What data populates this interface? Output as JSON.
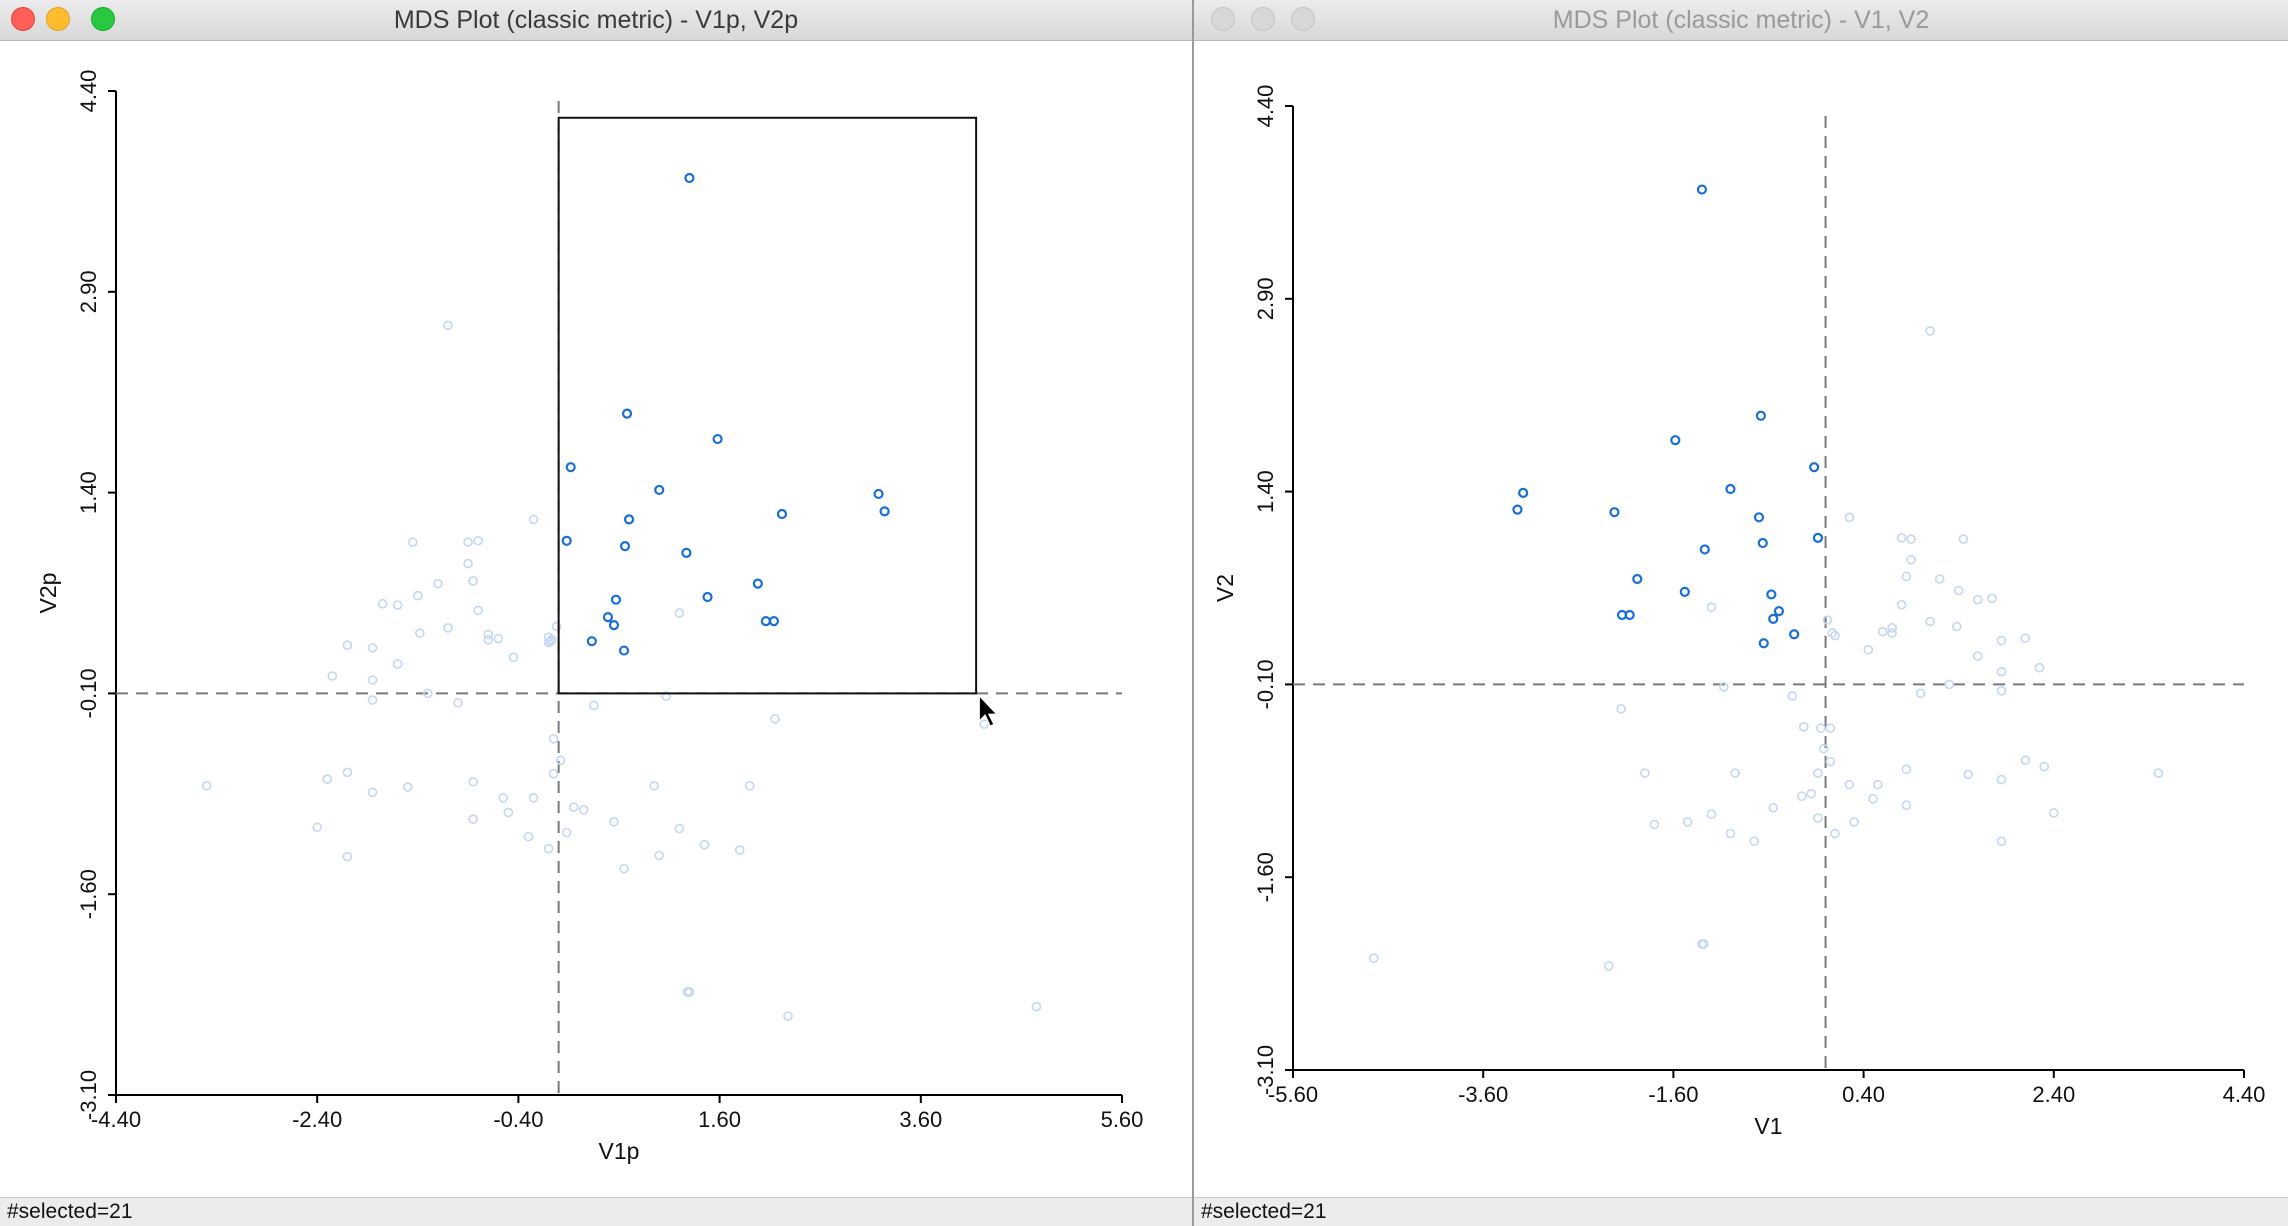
{
  "colors": {
    "selected": "#1a6fd6",
    "unselected": "#c3d6f2",
    "axis": "#000000",
    "dash": "#7a7a7a"
  },
  "left_window": {
    "title": "MDS Plot (classic metric) - V1p, V2p",
    "status": "#selected=21",
    "controls": [
      "close-icon",
      "minimize-icon",
      "zoom-icon"
    ]
  },
  "right_window": {
    "title": "MDS Plot (classic metric) - V1, V2",
    "status": "#selected=21",
    "controls": [
      "close-icon",
      "minimize-icon",
      "zoom-icon"
    ]
  },
  "chart_data": [
    {
      "type": "scatter",
      "xlabel": "V1p",
      "ylabel": "V2p",
      "xlim": [
        -4.4,
        5.6
      ],
      "ylim": [
        -3.1,
        4.4
      ],
      "xticks": [
        "-4.40",
        "-2.40",
        "-0.40",
        "1.60",
        "3.60",
        "5.60"
      ],
      "yticks": [
        "-3.10",
        "-1.60",
        "-0.10",
        "1.40",
        "2.90",
        "4.40"
      ],
      "reference_lines": {
        "x": -0.0,
        "y": -0.1
      },
      "selection_box": {
        "x1": -0.0,
        "x2": 4.15,
        "y1": -0.1,
        "y2": 4.2
      },
      "selected_points": [
        [
          1.3,
          3.75
        ],
        [
          0.68,
          1.99
        ],
        [
          1.58,
          1.8
        ],
        [
          0.12,
          1.59
        ],
        [
          1.0,
          1.42
        ],
        [
          3.18,
          1.39
        ],
        [
          3.24,
          1.26
        ],
        [
          2.22,
          1.24
        ],
        [
          0.7,
          1.2
        ],
        [
          0.08,
          1.04
        ],
        [
          0.66,
          1.0
        ],
        [
          1.27,
          0.95
        ],
        [
          1.98,
          0.72
        ],
        [
          1.48,
          0.62
        ],
        [
          0.57,
          0.6
        ],
        [
          0.49,
          0.47
        ],
        [
          0.55,
          0.41
        ],
        [
          2.06,
          0.44
        ],
        [
          2.14,
          0.44
        ],
        [
          0.33,
          0.29
        ],
        [
          0.65,
          0.22
        ]
      ],
      "unselected_points": [
        [
          -1.1,
          2.65
        ],
        [
          -3.5,
          -0.79
        ],
        [
          -2.1,
          0.26
        ],
        [
          -2.25,
          0.03
        ],
        [
          -1.85,
          0.24
        ],
        [
          -1.6,
          0.12
        ],
        [
          -1.38,
          0.35
        ],
        [
          -1.1,
          0.39
        ],
        [
          -1.4,
          0.63
        ],
        [
          -1.75,
          0.57
        ],
        [
          -1.6,
          0.56
        ],
        [
          -1.2,
          0.72
        ],
        [
          -0.85,
          0.74
        ],
        [
          -0.9,
          0.87
        ],
        [
          -0.8,
          1.04
        ],
        [
          -1.45,
          1.03
        ],
        [
          -0.9,
          1.03
        ],
        [
          -0.25,
          1.2
        ],
        [
          -0.6,
          0.31
        ],
        [
          -0.7,
          0.3
        ],
        [
          -0.8,
          0.52
        ],
        [
          -1.0,
          -0.17
        ],
        [
          -1.3,
          -0.1
        ],
        [
          -1.85,
          -0.15
        ],
        [
          -1.85,
          0.0
        ],
        [
          -2.1,
          -0.69
        ],
        [
          -2.3,
          -0.74
        ],
        [
          -1.85,
          -0.84
        ],
        [
          -2.4,
          -1.1
        ],
        [
          -2.1,
          -1.32
        ],
        [
          -1.5,
          -0.8
        ],
        [
          -0.85,
          -0.76
        ],
        [
          -0.55,
          -0.88
        ],
        [
          -0.5,
          -0.99
        ],
        [
          -0.25,
          -0.88
        ],
        [
          -0.85,
          -1.04
        ],
        [
          -0.3,
          -1.17
        ],
        [
          -0.1,
          -1.26
        ],
        [
          0.08,
          -1.14
        ],
        [
          0.25,
          -0.97
        ],
        [
          -0.05,
          -0.44
        ],
        [
          0.35,
          -0.19
        ],
        [
          0.55,
          -1.06
        ],
        [
          0.65,
          -1.41
        ],
        [
          1.0,
          -1.31
        ],
        [
          1.2,
          -1.11
        ],
        [
          1.45,
          -1.23
        ],
        [
          1.8,
          -1.27
        ],
        [
          1.9,
          -0.79
        ],
        [
          0.95,
          -0.79
        ],
        [
          1.07,
          -0.12
        ],
        [
          2.15,
          -0.29
        ],
        [
          -0.1,
          0.32
        ],
        [
          -0.08,
          0.29
        ],
        [
          1.28,
          -2.33
        ],
        [
          1.3,
          -2.33
        ],
        [
          2.28,
          -2.51
        ],
        [
          4.75,
          -2.44
        ],
        [
          4.23,
          -0.33
        ],
        [
          -0.45,
          0.17
        ],
        [
          -0.07,
          0.3
        ],
        [
          -0.02,
          0.4
        ],
        [
          1.2,
          0.5
        ],
        [
          -0.7,
          0.34
        ],
        [
          -0.1,
          0.28
        ],
        [
          0.02,
          -0.6
        ],
        [
          0.15,
          -0.95
        ],
        [
          -0.05,
          -0.7
        ]
      ]
    },
    {
      "type": "scatter",
      "xlabel": "V1",
      "ylabel": "V2",
      "xlim": [
        -5.6,
        4.4
      ],
      "ylim": [
        -3.1,
        4.4
      ],
      "xticks": [
        "-5.60",
        "-3.60",
        "-1.60",
        "0.40",
        "2.40",
        "4.40"
      ],
      "yticks": [
        "-3.10",
        "-1.60",
        "-0.10",
        "1.40",
        "2.90",
        "4.40"
      ],
      "reference_lines": {
        "x": 0.0,
        "y": -0.1
      },
      "selected_points": [
        [
          -1.3,
          3.75
        ],
        [
          -0.68,
          1.99
        ],
        [
          -1.58,
          1.8
        ],
        [
          -0.12,
          1.59
        ],
        [
          -1.0,
          1.42
        ],
        [
          -3.18,
          1.39
        ],
        [
          -3.24,
          1.26
        ],
        [
          -2.22,
          1.24
        ],
        [
          -0.7,
          1.2
        ],
        [
          -0.08,
          1.04
        ],
        [
          -0.66,
          1.0
        ],
        [
          -1.27,
          0.95
        ],
        [
          -1.98,
          0.72
        ],
        [
          -1.48,
          0.62
        ],
        [
          -0.57,
          0.6
        ],
        [
          -0.49,
          0.47
        ],
        [
          -0.55,
          0.41
        ],
        [
          -2.06,
          0.44
        ],
        [
          -2.14,
          0.44
        ],
        [
          -0.33,
          0.29
        ],
        [
          -0.65,
          0.22
        ]
      ],
      "unselected_points": [
        [
          1.1,
          2.65
        ],
        [
          3.5,
          -0.79
        ],
        [
          2.1,
          0.26
        ],
        [
          2.25,
          0.03
        ],
        [
          1.85,
          0.24
        ],
        [
          1.6,
          0.12
        ],
        [
          1.38,
          0.35
        ],
        [
          1.1,
          0.39
        ],
        [
          1.4,
          0.63
        ],
        [
          1.75,
          0.57
        ],
        [
          1.6,
          0.56
        ],
        [
          1.2,
          0.72
        ],
        [
          0.85,
          0.74
        ],
        [
          0.9,
          0.87
        ],
        [
          0.8,
          1.04
        ],
        [
          1.45,
          1.03
        ],
        [
          0.9,
          1.03
        ],
        [
          0.25,
          1.2
        ],
        [
          0.6,
          0.31
        ],
        [
          0.7,
          0.3
        ],
        [
          0.8,
          0.52
        ],
        [
          1.0,
          -0.17
        ],
        [
          1.3,
          -0.1
        ],
        [
          1.85,
          -0.15
        ],
        [
          1.85,
          0.0
        ],
        [
          2.1,
          -0.69
        ],
        [
          2.3,
          -0.74
        ],
        [
          1.85,
          -0.84
        ],
        [
          2.4,
          -1.1
        ],
        [
          1.85,
          -1.32
        ],
        [
          1.5,
          -0.8
        ],
        [
          0.85,
          -0.76
        ],
        [
          0.55,
          -0.88
        ],
        [
          0.5,
          -0.99
        ],
        [
          0.25,
          -0.88
        ],
        [
          0.85,
          -1.04
        ],
        [
          0.3,
          -1.17
        ],
        [
          0.1,
          -1.26
        ],
        [
          -0.08,
          -1.14
        ],
        [
          -0.25,
          -0.97
        ],
        [
          0.05,
          -0.44
        ],
        [
          -0.35,
          -0.19
        ],
        [
          -0.55,
          -1.06
        ],
        [
          -0.75,
          -1.32
        ],
        [
          -1.0,
          -1.26
        ],
        [
          -1.2,
          -1.11
        ],
        [
          -1.45,
          -1.17
        ],
        [
          -1.8,
          -1.19
        ],
        [
          -1.9,
          -0.79
        ],
        [
          -0.95,
          -0.79
        ],
        [
          -1.07,
          -0.12
        ],
        [
          -2.15,
          -0.29
        ],
        [
          -0.05,
          -0.44
        ],
        [
          -0.08,
          -0.79
        ],
        [
          -1.28,
          -2.12
        ],
        [
          -1.3,
          -2.12
        ],
        [
          -2.28,
          -2.29
        ],
        [
          -4.75,
          -2.23
        ],
        [
          -0.23,
          -0.43
        ],
        [
          0.45,
          0.17
        ],
        [
          0.07,
          0.3
        ],
        [
          0.02,
          0.4
        ],
        [
          -1.2,
          0.5
        ],
        [
          0.7,
          0.34
        ],
        [
          0.1,
          0.28
        ],
        [
          -0.02,
          -0.6
        ],
        [
          -0.15,
          -0.95
        ],
        [
          0.05,
          -0.7
        ]
      ]
    }
  ]
}
